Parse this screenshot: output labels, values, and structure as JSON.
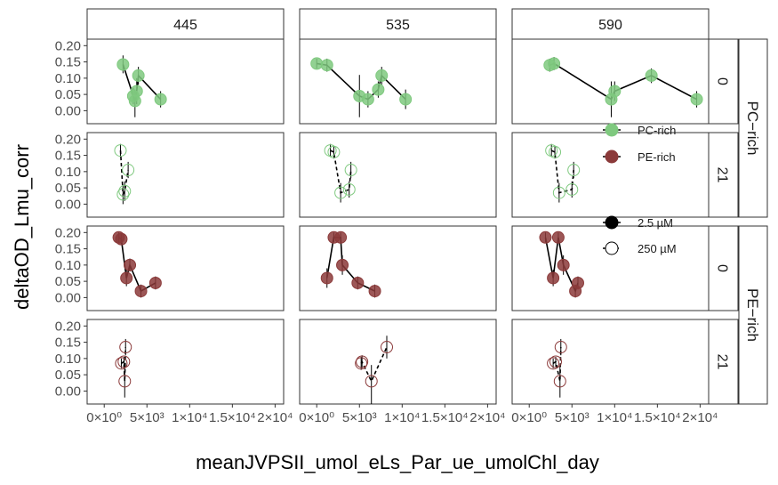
{
  "chart_data": {
    "type": "scatter",
    "xlabel": "meanJVPSII_umol_eLs_Par_ue_umolChl_day",
    "ylabel": "deltaOD_Lmu_corr",
    "col_facets": [
      "445",
      "535",
      "590"
    ],
    "row_facets": [
      "0",
      "21",
      "0",
      "21"
    ],
    "row_groups": [
      {
        "label": "PC−rich",
        "rows": [
          0,
          1
        ]
      },
      {
        "label": "PE−rich",
        "rows": [
          2,
          3
        ]
      }
    ],
    "xlim": [
      -100,
      1050
    ],
    "ylim": [
      -0.04,
      0.22
    ],
    "x_ticks": [
      {
        "value": 0,
        "label": "0×10⁰"
      },
      {
        "value": 250,
        "label": "5×10³"
      },
      {
        "value": 500,
        "label": "1×10⁴"
      },
      {
        "value": 750,
        "label": "1.5×10⁴"
      },
      {
        "value": 1000,
        "label": "2×10⁴"
      }
    ],
    "y_ticks": [
      {
        "value": 0.0,
        "label": "0.00"
      },
      {
        "value": 0.05,
        "label": "0.05"
      },
      {
        "value": 0.1,
        "label": "0.10"
      },
      {
        "value": 0.15,
        "label": "0.15"
      },
      {
        "value": 0.2,
        "label": "0.20"
      }
    ],
    "colors": {
      "PC-rich": "#7fc97f",
      "PE-rich": "#8b3a3a"
    },
    "legend": [
      {
        "label": "PC-rich",
        "kind": "fill",
        "color": "#7fc97f"
      },
      {
        "label": "PE-rich",
        "kind": "fill",
        "color": "#8b3a3a"
      },
      {
        "label": "2.5 µM",
        "kind": "solid",
        "color": "#000000"
      },
      {
        "label": "250 µM",
        "kind": "open",
        "color": "#000000"
      }
    ],
    "legend_position": "right",
    "panels": [
      {
        "row": 0,
        "col": 0,
        "strain": "PC-rich",
        "fill": true,
        "line": "solid",
        "points": [
          {
            "x": 110,
            "y": 0.142,
            "lo": 0.115,
            "hi": 0.17
          },
          {
            "x": 170,
            "y": 0.045,
            "lo": 0.02,
            "hi": 0.07
          },
          {
            "x": 180,
            "y": 0.03,
            "lo": -0.02,
            "hi": 0.065
          },
          {
            "x": 190,
            "y": 0.06,
            "lo": 0.02,
            "hi": 0.1
          },
          {
            "x": 200,
            "y": 0.108,
            "lo": 0.08,
            "hi": 0.135
          },
          {
            "x": 330,
            "y": 0.035,
            "lo": 0.01,
            "hi": 0.06
          }
        ]
      },
      {
        "row": 0,
        "col": 1,
        "strain": "PC-rich",
        "fill": true,
        "line": "solid",
        "points": [
          {
            "x": 0,
            "y": 0.145,
            "lo": 0.13,
            "hi": 0.16
          },
          {
            "x": 60,
            "y": 0.14,
            "lo": 0.12,
            "hi": 0.16
          },
          {
            "x": 250,
            "y": 0.045,
            "lo": -0.02,
            "hi": 0.11
          },
          {
            "x": 300,
            "y": 0.035,
            "lo": 0.01,
            "hi": 0.06
          },
          {
            "x": 360,
            "y": 0.065,
            "lo": 0.04,
            "hi": 0.09
          },
          {
            "x": 380,
            "y": 0.108,
            "lo": 0.08,
            "hi": 0.135
          },
          {
            "x": 520,
            "y": 0.035,
            "lo": 0.005,
            "hi": 0.065
          }
        ]
      },
      {
        "row": 0,
        "col": 2,
        "strain": "PC-rich",
        "fill": true,
        "line": "solid",
        "points": [
          {
            "x": 120,
            "y": 0.14,
            "lo": 0.12,
            "hi": 0.16
          },
          {
            "x": 145,
            "y": 0.145,
            "lo": 0.125,
            "hi": 0.165
          },
          {
            "x": 480,
            "y": 0.035,
            "lo": -0.02,
            "hi": 0.09
          },
          {
            "x": 500,
            "y": 0.06,
            "lo": 0.03,
            "hi": 0.09
          },
          {
            "x": 715,
            "y": 0.108,
            "lo": 0.085,
            "hi": 0.13
          },
          {
            "x": 980,
            "y": 0.035,
            "lo": 0.01,
            "hi": 0.06
          }
        ]
      },
      {
        "row": 1,
        "col": 0,
        "strain": "PC-rich",
        "fill": false,
        "line": "dashed",
        "points": [
          {
            "x": 95,
            "y": 0.165,
            "lo": 0.145,
            "hi": 0.185
          },
          {
            "x": 110,
            "y": 0.03,
            "lo": 0.0,
            "hi": 0.06
          },
          {
            "x": 120,
            "y": 0.04,
            "lo": 0.01,
            "hi": 0.07
          },
          {
            "x": 140,
            "y": 0.105,
            "lo": 0.08,
            "hi": 0.13
          }
        ]
      },
      {
        "row": 1,
        "col": 1,
        "strain": "PC-rich",
        "fill": false,
        "line": "dashed",
        "points": [
          {
            "x": 80,
            "y": 0.165,
            "lo": 0.145,
            "hi": 0.185
          },
          {
            "x": 100,
            "y": 0.16,
            "lo": 0.14,
            "hi": 0.18
          },
          {
            "x": 140,
            "y": 0.035,
            "lo": 0.005,
            "hi": 0.065
          },
          {
            "x": 190,
            "y": 0.045,
            "lo": 0.02,
            "hi": 0.07
          },
          {
            "x": 200,
            "y": 0.105,
            "lo": 0.08,
            "hi": 0.13
          }
        ]
      },
      {
        "row": 1,
        "col": 2,
        "strain": "PC-rich",
        "fill": false,
        "line": "dashed",
        "points": [
          {
            "x": 130,
            "y": 0.165,
            "lo": 0.145,
            "hi": 0.185
          },
          {
            "x": 150,
            "y": 0.16,
            "lo": 0.14,
            "hi": 0.18
          },
          {
            "x": 175,
            "y": 0.035,
            "lo": 0.005,
            "hi": 0.065
          },
          {
            "x": 250,
            "y": 0.045,
            "lo": 0.02,
            "hi": 0.07
          },
          {
            "x": 260,
            "y": 0.105,
            "lo": 0.08,
            "hi": 0.13
          }
        ]
      },
      {
        "row": 2,
        "col": 0,
        "strain": "PE-rich",
        "fill": true,
        "line": "solid",
        "points": [
          {
            "x": 85,
            "y": 0.185,
            "lo": 0.17,
            "hi": 0.2
          },
          {
            "x": 100,
            "y": 0.18,
            "lo": 0.165,
            "hi": 0.195
          },
          {
            "x": 130,
            "y": 0.06,
            "lo": 0.035,
            "hi": 0.085
          },
          {
            "x": 150,
            "y": 0.1,
            "lo": 0.08,
            "hi": 0.12
          },
          {
            "x": 215,
            "y": 0.02,
            "lo": 0.0,
            "hi": 0.04
          },
          {
            "x": 300,
            "y": 0.045,
            "lo": 0.025,
            "hi": 0.065
          }
        ]
      },
      {
        "row": 2,
        "col": 1,
        "strain": "PE-rich",
        "fill": true,
        "line": "solid",
        "points": [
          {
            "x": 60,
            "y": 0.06,
            "lo": 0.03,
            "hi": 0.09
          },
          {
            "x": 100,
            "y": 0.185,
            "lo": 0.17,
            "hi": 0.2
          },
          {
            "x": 140,
            "y": 0.185,
            "lo": 0.17,
            "hi": 0.2
          },
          {
            "x": 150,
            "y": 0.1,
            "lo": 0.07,
            "hi": 0.13
          },
          {
            "x": 240,
            "y": 0.045,
            "lo": 0.025,
            "hi": 0.065
          },
          {
            "x": 340,
            "y": 0.02,
            "lo": 0.0,
            "hi": 0.04
          }
        ]
      },
      {
        "row": 2,
        "col": 2,
        "strain": "PE-rich",
        "fill": true,
        "line": "solid",
        "points": [
          {
            "x": 95,
            "y": 0.185,
            "lo": 0.17,
            "hi": 0.2
          },
          {
            "x": 140,
            "y": 0.06,
            "lo": 0.035,
            "hi": 0.085
          },
          {
            "x": 170,
            "y": 0.185,
            "lo": 0.17,
            "hi": 0.2
          },
          {
            "x": 200,
            "y": 0.1,
            "lo": 0.07,
            "hi": 0.13
          },
          {
            "x": 270,
            "y": 0.02,
            "lo": 0.0,
            "hi": 0.04
          },
          {
            "x": 285,
            "y": 0.045,
            "lo": 0.025,
            "hi": 0.065
          }
        ]
      },
      {
        "row": 3,
        "col": 0,
        "strain": "PE-rich",
        "fill": false,
        "line": "dashed",
        "points": [
          {
            "x": 100,
            "y": 0.085,
            "lo": 0.07,
            "hi": 0.1
          },
          {
            "x": 115,
            "y": 0.09,
            "lo": 0.075,
            "hi": 0.105
          },
          {
            "x": 120,
            "y": 0.03,
            "lo": -0.02,
            "hi": 0.08
          },
          {
            "x": 125,
            "y": 0.135,
            "lo": 0.11,
            "hi": 0.16
          }
        ]
      },
      {
        "row": 3,
        "col": 1,
        "strain": "PE-rich",
        "fill": false,
        "line": "dashed",
        "points": [
          {
            "x": 260,
            "y": 0.085,
            "lo": 0.065,
            "hi": 0.105
          },
          {
            "x": 265,
            "y": 0.09,
            "lo": 0.07,
            "hi": 0.11
          },
          {
            "x": 320,
            "y": 0.03,
            "lo": -0.04,
            "hi": 0.08
          },
          {
            "x": 410,
            "y": 0.135,
            "lo": 0.1,
            "hi": 0.17
          }
        ]
      },
      {
        "row": 3,
        "col": 2,
        "strain": "PE-rich",
        "fill": false,
        "line": "dashed",
        "points": [
          {
            "x": 140,
            "y": 0.085,
            "lo": 0.07,
            "hi": 0.1
          },
          {
            "x": 155,
            "y": 0.09,
            "lo": 0.075,
            "hi": 0.105
          },
          {
            "x": 180,
            "y": 0.03,
            "lo": -0.02,
            "hi": 0.08
          },
          {
            "x": 185,
            "y": 0.135,
            "lo": 0.11,
            "hi": 0.16
          }
        ]
      }
    ]
  }
}
